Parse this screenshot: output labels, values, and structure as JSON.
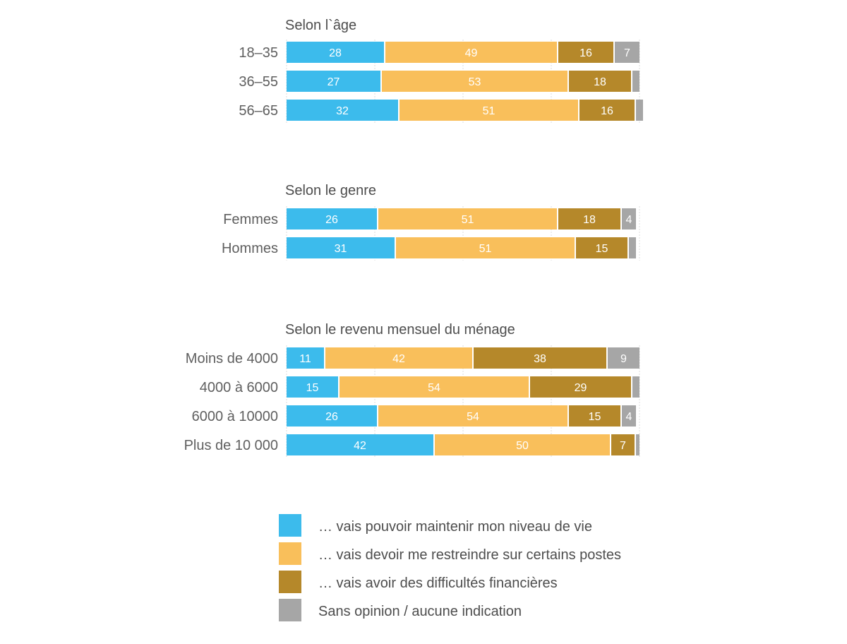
{
  "chart_data": {
    "type": "bar",
    "orientation": "horizontal",
    "stacked": true,
    "unit": "percent",
    "xlim": [
      0,
      100
    ],
    "grid": true,
    "legend_position": "bottom",
    "series": [
      {
        "name": "… vais pouvoir maintenir mon niveau de vie",
        "color": "#3cbbec"
      },
      {
        "name": "… vais devoir me restreindre sur certains postes",
        "color": "#f9bf5b"
      },
      {
        "name": "… vais avoir des difficultés financières",
        "color": "#b5882a"
      },
      {
        "name": "Sans opinion / aucune indication",
        "color": "#a6a6a6"
      }
    ],
    "groups": [
      {
        "title": "Selon l`âge",
        "rows": [
          {
            "label": "18–35",
            "values": [
              28,
              49,
              16,
              7
            ],
            "labels": [
              "28",
              "49",
              "16",
              "7"
            ]
          },
          {
            "label": "36–55",
            "values": [
              27,
              53,
              18,
              2
            ],
            "labels": [
              "27",
              "53",
              "18",
              ""
            ]
          },
          {
            "label": "56–65",
            "values": [
              32,
              51,
              16,
              2
            ],
            "labels": [
              "32",
              "51",
              "16",
              ""
            ]
          }
        ]
      },
      {
        "title": "Selon le genre",
        "rows": [
          {
            "label": "Femmes",
            "values": [
              26,
              51,
              18,
              4
            ],
            "labels": [
              "26",
              "51",
              "18",
              "4"
            ]
          },
          {
            "label": "Hommes",
            "values": [
              31,
              51,
              15,
              2
            ],
            "labels": [
              "31",
              "51",
              "15",
              ""
            ]
          }
        ]
      },
      {
        "title": "Selon le revenu mensuel du ménage",
        "rows": [
          {
            "label": "Moins de 4000",
            "values": [
              11,
              42,
              38,
              9
            ],
            "labels": [
              "11",
              "42",
              "38",
              "9"
            ]
          },
          {
            "label": "4000 à 6000",
            "values": [
              15,
              54,
              29,
              2
            ],
            "labels": [
              "15",
              "54",
              "29",
              ""
            ]
          },
          {
            "label": "6000 à 10000",
            "values": [
              26,
              54,
              15,
              4
            ],
            "labels": [
              "26",
              "54",
              "15",
              "4"
            ]
          },
          {
            "label": "Plus de 10 000",
            "values": [
              42,
              50,
              7,
              1
            ],
            "labels": [
              "42",
              "50",
              "7",
              ""
            ]
          }
        ]
      }
    ]
  }
}
